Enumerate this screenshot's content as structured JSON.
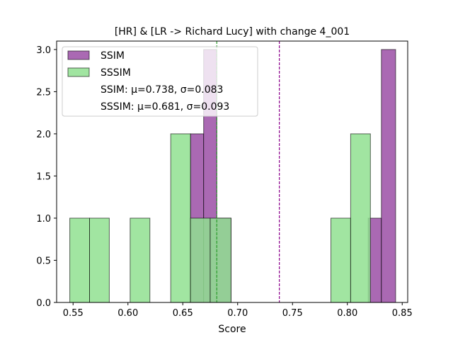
{
  "chart_data": {
    "type": "bar",
    "title": "[HR] & [LR -> Richard Lucy] with change 4_001",
    "xlabel": "Score",
    "ylabel": "",
    "xlim": [
      0.535,
      0.855
    ],
    "ylim": [
      0,
      3.1
    ],
    "x_ticks": [
      "0.55",
      "0.60",
      "0.65",
      "0.70",
      "0.75",
      "0.80",
      "0.85"
    ],
    "y_ticks": [
      "0.0",
      "0.5",
      "1.0",
      "1.5",
      "2.0",
      "2.5",
      "3.0"
    ],
    "grid": false,
    "legend_position": "top-left",
    "series": [
      {
        "name": "SSIM",
        "color": "#9b4fa6",
        "mean_line": 0.738,
        "bins": [
          {
            "x0": 0.657,
            "x1": 0.669,
            "count": 2
          },
          {
            "x0": 0.669,
            "x1": 0.681,
            "count": 3
          },
          {
            "x0": 0.681,
            "x1": 0.694,
            "count": 1
          },
          {
            "x0": 0.819,
            "x1": 0.831,
            "count": 1
          },
          {
            "x0": 0.831,
            "x1": 0.844,
            "count": 3
          }
        ]
      },
      {
        "name": "SSSIM",
        "color": "#90e090",
        "mean_line": 0.681,
        "bins": [
          {
            "x0": 0.547,
            "x1": 0.565,
            "count": 1
          },
          {
            "x0": 0.565,
            "x1": 0.583,
            "count": 1
          },
          {
            "x0": 0.602,
            "x1": 0.62,
            "count": 1
          },
          {
            "x0": 0.639,
            "x1": 0.657,
            "count": 2
          },
          {
            "x0": 0.657,
            "x1": 0.675,
            "count": 1
          },
          {
            "x0": 0.675,
            "x1": 0.694,
            "count": 1
          },
          {
            "x0": 0.785,
            "x1": 0.803,
            "count": 1
          },
          {
            "x0": 0.803,
            "x1": 0.821,
            "count": 2
          }
        ]
      }
    ],
    "legend": {
      "entries": [
        {
          "label": "SSIM",
          "color": "#9b4fa6"
        },
        {
          "label": "SSSIM",
          "color": "#90e090"
        }
      ],
      "stats": [
        "SSIM: μ=0.738, σ=0.083",
        "SSSIM: μ=0.681, σ=0.093"
      ]
    }
  }
}
